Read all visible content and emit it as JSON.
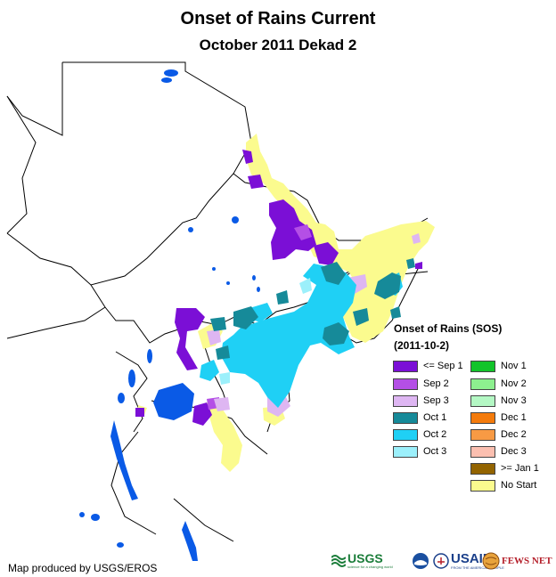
{
  "title": "Onset of Rains Current",
  "subtitle": "October 2011 Dekad 2",
  "legend": {
    "title": "Onset of Rains (SOS)",
    "date": "(2011-10-2)",
    "col1": [
      {
        "label": "<= Sep 1",
        "color": "#7b0fd6"
      },
      {
        "label": "Sep 2",
        "color": "#b44fe6"
      },
      {
        "label": "Sep 3",
        "color": "#deb6f2"
      },
      {
        "label": "Oct 1",
        "color": "#168a99"
      },
      {
        "label": "Oct 2",
        "color": "#1fd0f5"
      },
      {
        "label": "Oct 3",
        "color": "#9cf0fb"
      }
    ],
    "col2": [
      {
        "label": "Nov 1",
        "color": "#12c42a"
      },
      {
        "label": "Nov 2",
        "color": "#8df08f"
      },
      {
        "label": "Nov 3",
        "color": "#b4f8c4"
      },
      {
        "label": "Dec 1",
        "color": "#f47b0c"
      },
      {
        "label": "Dec 2",
        "color": "#f89a44"
      },
      {
        "label": "Dec 3",
        "color": "#fbbfb0"
      },
      {
        "label": ">= Jan 1",
        "color": "#936400"
      },
      {
        "label": "No Start",
        "color": "#fbfb8e"
      }
    ]
  },
  "credit": "Map produced by USGS/EROS",
  "logos": {
    "usgs": "USGS",
    "usgs_tagline": "science for a changing world",
    "usaid": "USAID",
    "usaid_tagline": "FROM THE AMERICAN PEOPLE",
    "fewsnet": "FEWS NET"
  },
  "colors": {
    "water": "#0a5ae6",
    "border": "#000000"
  }
}
